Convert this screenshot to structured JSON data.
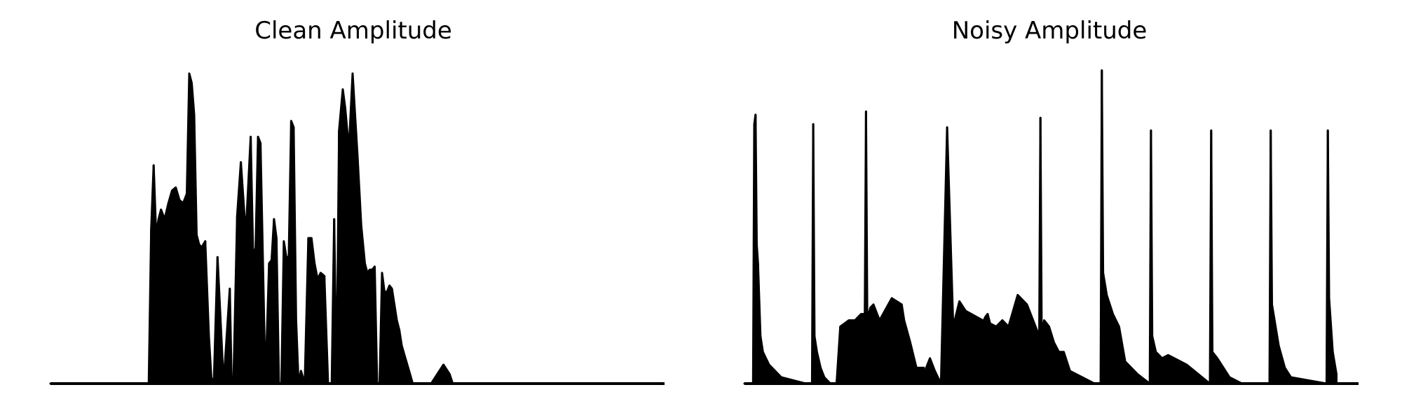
{
  "chart_data": [
    {
      "type": "line",
      "title": "Clean Amplitude",
      "xlabel": "",
      "ylabel": "",
      "axes_visible": false,
      "grid": false,
      "color": "#000000",
      "xlim": [
        0,
        1000
      ],
      "ylim": [
        0,
        1.0
      ],
      "series": [
        {
          "x": [
            0,
            160,
            164,
            168,
            172,
            176,
            180,
            186,
            192,
            198,
            204,
            210,
            216,
            222,
            226,
            230,
            234,
            238,
            242,
            246,
            252,
            258,
            262,
            266,
            272,
            282,
            292,
            295,
            298,
            304,
            310,
            318,
            326,
            330,
            334,
            338,
            342,
            350,
            356,
            360,
            364,
            368,
            372,
            376,
            380,
            384,
            388,
            392,
            396,
            400,
            404,
            408,
            414,
            420,
            425,
            430,
            435,
            440,
            446,
            452,
            458,
            462,
            466,
            470,
            476,
            480,
            486,
            492,
            500,
            506,
            512,
            516,
            520,
            524,
            528,
            532,
            536,
            540,
            544,
            548,
            552,
            556,
            560,
            564,
            568,
            572,
            578,
            584,
            590,
            596,
            602,
            608,
            620,
            640,
            650,
            655,
            660,
            700
          ],
          "y": [
            0.0,
            0.0,
            0.49,
            0.69,
            0.47,
            0.52,
            0.55,
            0.52,
            0.57,
            0.61,
            0.62,
            0.58,
            0.57,
            0.6,
            0.98,
            0.95,
            0.85,
            0.47,
            0.44,
            0.43,
            0.45,
            0.15,
            0.02,
            0.0,
            0.4,
            0.0,
            0.3,
            0.0,
            0.0,
            0.53,
            0.7,
            0.47,
            0.78,
            0.4,
            0.43,
            0.78,
            0.76,
            0.0,
            0.38,
            0.39,
            0.52,
            0.46,
            0.0,
            0.0,
            0.45,
            0.4,
            0.4,
            0.83,
            0.81,
            0.2,
            0.0,
            0.04,
            0.0,
            0.46,
            0.46,
            0.38,
            0.33,
            0.35,
            0.34,
            0.0,
            0.0,
            0.52,
            0.0,
            0.8,
            0.93,
            0.87,
            0.74,
            0.98,
            0.72,
            0.5,
            0.38,
            0.35,
            0.36,
            0.36,
            0.37,
            0.0,
            0.0,
            0.35,
            0.29,
            0.29,
            0.31,
            0.3,
            0.25,
            0.2,
            0.17,
            0.12,
            0.08,
            0.04,
            0.0,
            0.0,
            0.0,
            0.0,
            0.0,
            0.06,
            0.03,
            0.0,
            0.0,
            0.0
          ]
        }
      ]
    },
    {
      "type": "line",
      "title": "Noisy Amplitude",
      "xlabel": "",
      "ylabel": "",
      "axes_visible": false,
      "grid": false,
      "color": "#000000",
      "xlim": [
        0,
        1000
      ],
      "ylim": [
        0,
        1.0
      ],
      "series": [
        {
          "x": [
            0,
            14,
            16,
            18,
            20,
            22,
            26,
            30,
            40,
            60,
            100,
            110,
            112,
            114,
            118,
            124,
            130,
            140,
            150,
            156,
            170,
            180,
            190,
            196,
            198,
            200,
            205,
            210,
            220,
            240,
            256,
            260,
            270,
            280,
            292,
            294,
            296,
            302,
            310,
            320,
            330,
            340,
            350,
            360,
            388,
            390,
            392,
            396,
            400,
            410,
            420,
            430,
            445,
            460,
            480,
            482,
            484,
            488,
            496,
            504,
            512,
            520,
            530,
            570,
            580,
            582,
            584,
            590,
            600,
            610,
            620,
            640,
            660,
            662,
            664,
            670,
            680,
            690,
            700,
            720,
            758,
            760,
            762,
            770,
            780,
            790,
            810,
            855,
            857,
            859,
            870,
            880,
            890,
            948,
            950,
            952,
            958,
            964
          ],
          "y": [
            0.0,
            0.0,
            0.82,
            0.85,
            0.44,
            0.38,
            0.15,
            0.1,
            0.06,
            0.02,
            0.0,
            0.0,
            0.82,
            0.15,
            0.1,
            0.05,
            0.02,
            0.0,
            0.0,
            0.18,
            0.2,
            0.2,
            0.22,
            0.22,
            0.86,
            0.2,
            0.24,
            0.25,
            0.2,
            0.27,
            0.25,
            0.2,
            0.13,
            0.05,
            0.05,
            0.0,
            0.05,
            0.08,
            0.04,
            0.0,
            0.81,
            0.18,
            0.26,
            0.23,
            0.2,
            0.2,
            0.21,
            0.22,
            0.19,
            0.18,
            0.2,
            0.18,
            0.28,
            0.25,
            0.15,
            0.84,
            0.15,
            0.2,
            0.18,
            0.13,
            0.1,
            0.1,
            0.04,
            0.0,
            0.0,
            0.99,
            0.35,
            0.28,
            0.22,
            0.18,
            0.07,
            0.03,
            0.0,
            0.8,
            0.15,
            0.1,
            0.08,
            0.09,
            0.08,
            0.06,
            0.0,
            0.8,
            0.1,
            0.08,
            0.05,
            0.02,
            0.0,
            0.0,
            0.8,
            0.25,
            0.12,
            0.05,
            0.02,
            0.0,
            0.8,
            0.27,
            0.1,
            0.03
          ]
        }
      ]
    }
  ]
}
